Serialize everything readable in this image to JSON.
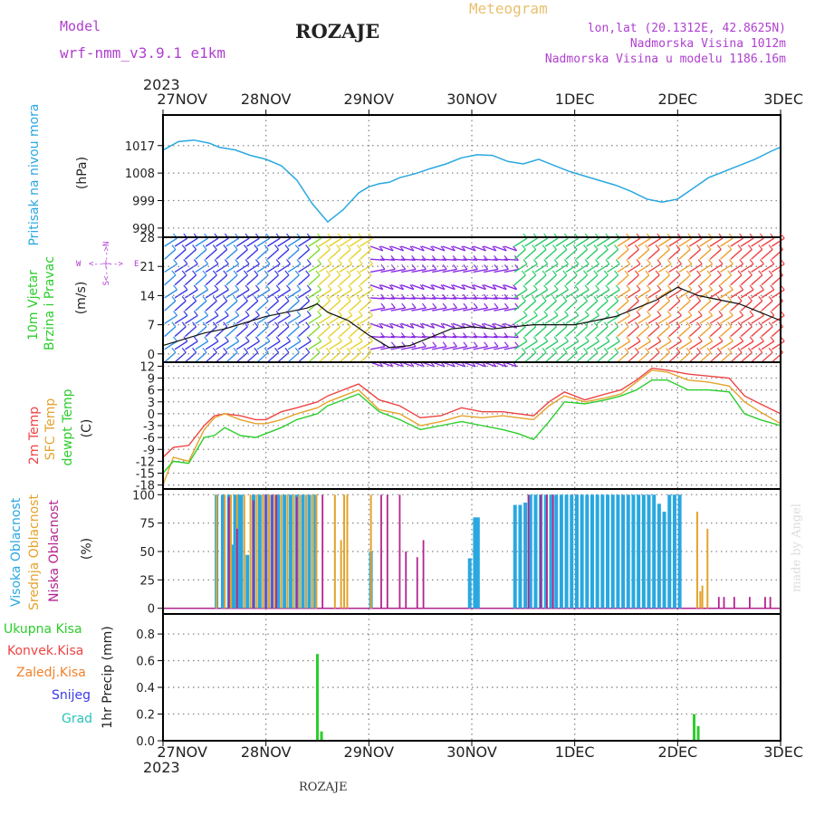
{
  "header": {
    "model_label": "Model",
    "model_name": "wrf-nmm_v3.9.1  e1km",
    "station": "ROZAJE",
    "product": "Meteogram",
    "lonlat": "lon,lat (20.1312E, 42.8625N)",
    "elevation": "Nadmorska Visina 1012m",
    "model_elevation": "Nadmorska Visina u modelu 1186.16m",
    "footer_station": "ROZAJE",
    "credit": "made by Angel"
  },
  "time_axis": {
    "year": "2023",
    "days": [
      "27NOV",
      "28NOV",
      "29NOV",
      "30NOV",
      "1DEC",
      "2DEC",
      "3DEC"
    ]
  },
  "colors": {
    "pressure": "#29a8e0",
    "t2m": "#ee4444",
    "sfc": "#e3a32c",
    "dewpt": "#2ccd2c",
    "high_cloud": "#29a8e0",
    "mid_cloud": "#e3a32c",
    "low_cloud": "#b3238f",
    "precip": "#2ccd2c",
    "conv": "#ee4444",
    "froz": "#f0822c",
    "snow": "#3a3ae8",
    "graupel": "#2cc4b8",
    "wind_axis_label": "#b040d0",
    "header_purple": "#b040d0",
    "header_gold": "#e8c070"
  },
  "panel_labels": {
    "pressure": [
      "Pritisak na nivou mora",
      "(hPa)"
    ],
    "wind": [
      "10m Vjetar",
      "Brzina i Pravac",
      "(m/s)"
    ],
    "wind_compass": [
      "W",
      "<--|-->",
      "E",
      "S<--|-->N"
    ],
    "temp": [
      "2m Temp",
      "SFC Temp",
      "dewpt Temp",
      "(C)"
    ],
    "cloud": [
      "Visoka Oblacnost",
      "Srednja Oblacnost",
      "Niska Oblacnost",
      "(%)"
    ],
    "precip_legend": [
      "Ukupna Kisa",
      "Konvek.Kisa",
      "Zaledj.Kisa",
      "Snijeg",
      "Grad"
    ],
    "precip_unit": "1hr Precip (mm)"
  },
  "chart_data": [
    {
      "type": "line",
      "name": "pressure",
      "yticks": [
        990,
        999,
        1008,
        1017
      ],
      "ylim": [
        987,
        1027
      ],
      "x": [
        0,
        0.15,
        0.3,
        0.45,
        0.55,
        0.7,
        0.85,
        1.0,
        1.15,
        1.3,
        1.45,
        1.6,
        1.75,
        1.9,
        2.0,
        2.1,
        2.2,
        2.3,
        2.45,
        2.6,
        2.75,
        2.9,
        3.05,
        3.2,
        3.35,
        3.5,
        3.65,
        3.8,
        3.95,
        4.1,
        4.25,
        4.4,
        4.55,
        4.7,
        4.85,
        5.0,
        5.15,
        5.3,
        5.45,
        5.6,
        5.75,
        5.9,
        6.0
      ],
      "values": [
        1015.5,
        1018.3,
        1018.8,
        1017.8,
        1016.4,
        1015.6,
        1013.8,
        1012.5,
        1010.4,
        1005.7,
        998.0,
        992.0,
        996.0,
        1001.5,
        1003.5,
        1004.5,
        1005.0,
        1006.5,
        1007.8,
        1009.5,
        1011.0,
        1013.0,
        1014.0,
        1013.8,
        1011.8,
        1011.0,
        1012.5,
        1010.5,
        1008.5,
        1007.0,
        1005.5,
        1004.0,
        1002.0,
        999.5,
        998.5,
        999.5,
        1003.0,
        1006.5,
        1008.5,
        1010.5,
        1012.5,
        1015.0,
        1016.5
      ]
    },
    {
      "type": "line",
      "name": "wind_speed",
      "yticks": [
        0,
        7,
        14,
        21,
        28
      ],
      "ylim": [
        -2,
        28
      ],
      "x": [
        0,
        0.2,
        0.4,
        0.6,
        0.8,
        1.0,
        1.2,
        1.4,
        1.5,
        1.6,
        1.8,
        2.0,
        2.2,
        2.4,
        2.6,
        2.8,
        3.0,
        3.2,
        3.4,
        3.6,
        3.8,
        4.0,
        4.2,
        4.4,
        4.6,
        4.8,
        5.0,
        5.2,
        5.4,
        5.6,
        5.8,
        6.0
      ],
      "values": [
        2.0,
        3.5,
        5.0,
        6.0,
        7.5,
        9.0,
        10.0,
        11.0,
        12.0,
        10.0,
        8.0,
        4.5,
        1.5,
        2.0,
        4.0,
        6.0,
        6.5,
        6.0,
        6.5,
        7.0,
        7.0,
        7.0,
        8.0,
        9.0,
        11.0,
        13.0,
        16.0,
        14.0,
        13.0,
        12.0,
        10.0,
        8.0
      ]
    },
    {
      "type": "line",
      "name": "temperature",
      "yticks": [
        12,
        9,
        6,
        3,
        0,
        -3,
        -6,
        -9,
        -12,
        -15,
        -18
      ],
      "ylim": [
        -19,
        13
      ],
      "x": [
        0,
        0.1,
        0.25,
        0.4,
        0.5,
        0.6,
        0.75,
        0.9,
        1.0,
        1.15,
        1.3,
        1.5,
        1.6,
        1.75,
        1.9,
        2.1,
        2.3,
        2.5,
        2.7,
        2.9,
        3.1,
        3.3,
        3.45,
        3.6,
        3.75,
        3.9,
        4.1,
        4.3,
        4.45,
        4.6,
        4.75,
        4.9,
        5.1,
        5.3,
        5.5,
        5.65,
        5.8,
        6.0
      ],
      "series": [
        {
          "name": "2m Temp",
          "values": [
            -11,
            -8.5,
            -8,
            -3,
            -0.5,
            0,
            -0.5,
            -1.5,
            -1.5,
            0.5,
            1.5,
            3,
            4.5,
            6,
            7.5,
            3.5,
            2,
            -1,
            -0.5,
            1.5,
            0.5,
            0.5,
            0,
            -0.5,
            3,
            5.5,
            3.5,
            5,
            6,
            8.5,
            11.5,
            11,
            10,
            9.5,
            9,
            4.5,
            2.5,
            0
          ]
        },
        {
          "name": "SFC Temp",
          "values": [
            -18,
            -11,
            -12,
            -4,
            -1,
            0,
            -1.5,
            -2.5,
            -2.5,
            -1.5,
            0,
            1.5,
            3,
            4.5,
            6,
            1,
            0,
            -3,
            -2,
            -0.5,
            -1,
            -0.5,
            -1,
            -1.5,
            2,
            4.5,
            3,
            4,
            5,
            8,
            11,
            10.5,
            8.5,
            8,
            7,
            3,
            0.5,
            -2.5
          ]
        },
        {
          "name": "dewpt Temp",
          "values": [
            -15,
            -12,
            -12.5,
            -6,
            -5.5,
            -3.5,
            -5.5,
            -6,
            -5,
            -3.5,
            -1.5,
            0,
            2,
            3.5,
            5,
            0.5,
            -1.5,
            -4,
            -3,
            -2,
            -3,
            -4,
            -5,
            -6.5,
            -2,
            3,
            2.5,
            3.5,
            4.5,
            6,
            8.5,
            8.5,
            6,
            6,
            5.5,
            0,
            -1.5,
            -3
          ]
        }
      ]
    },
    {
      "type": "bar",
      "name": "cloud_cover",
      "yticks": [
        0,
        25,
        50,
        75,
        100
      ],
      "ylim": [
        -5,
        105
      ],
      "series": [
        {
          "name": "Visoka Oblacnost",
          "x": [
            0.52,
            0.58,
            0.64,
            0.67,
            0.7,
            0.73,
            0.76,
            0.82,
            0.88,
            0.94,
            1.0,
            1.06,
            1.12,
            1.18,
            1.24,
            1.3,
            1.36,
            1.42,
            1.48,
            2.02,
            2.98,
            3.03,
            3.06,
            3.42,
            3.47,
            3.52,
            3.57,
            3.62,
            3.67,
            3.72,
            3.77,
            3.82,
            3.87,
            3.92,
            3.97,
            4.02,
            4.07,
            4.12,
            4.17,
            4.22,
            4.27,
            4.32,
            4.37,
            4.42,
            4.47,
            4.52,
            4.57,
            4.62,
            4.67,
            4.72,
            4.77,
            4.82,
            4.87,
            4.92,
            4.97,
            5.02
          ],
          "values": [
            100,
            100,
            100,
            56,
            100,
            100,
            100,
            47,
            100,
            100,
            100,
            100,
            100,
            100,
            100,
            100,
            100,
            100,
            100,
            50,
            44,
            80,
            80,
            91,
            91,
            93,
            100,
            100,
            100,
            100,
            100,
            100,
            100,
            100,
            100,
            100,
            100,
            100,
            100,
            100,
            100,
            100,
            100,
            100,
            100,
            100,
            100,
            100,
            100,
            100,
            100,
            92,
            85,
            100,
            100,
            100
          ]
        },
        {
          "name": "Srednja Oblacnost",
          "x": [
            0.52,
            0.6,
            0.66,
            0.72,
            0.79,
            0.85,
            0.91,
            0.97,
            1.03,
            1.09,
            1.15,
            1.21,
            1.27,
            1.33,
            1.39,
            1.45,
            1.49,
            1.51,
            1.67,
            1.73,
            1.76,
            1.79,
            2.02,
            3.73,
            5.19,
            5.22,
            5.24,
            5.29
          ],
          "values": [
            100,
            100,
            100,
            100,
            100,
            100,
            100,
            100,
            100,
            100,
            100,
            100,
            100,
            100,
            100,
            100,
            100,
            0,
            100,
            60,
            100,
            100,
            100,
            100,
            85,
            15,
            20,
            70
          ]
        },
        {
          "name": "Niska Oblacnost",
          "x": [
            0.64,
            0.72,
            0.88,
            1.0,
            1.06,
            1.1,
            1.3,
            1.55,
            2.12,
            2.18,
            2.3,
            2.36,
            2.47,
            2.53,
            3.55,
            3.67,
            3.73,
            3.79,
            5.4,
            5.45,
            5.55,
            5.7,
            5.85,
            5.9
          ],
          "values": [
            98,
            70,
            95,
            100,
            100,
            100,
            98,
            100,
            100,
            100,
            100,
            50,
            45,
            60,
            100,
            100,
            100,
            100,
            10,
            10,
            10,
            10,
            10,
            10
          ]
        }
      ]
    },
    {
      "type": "bar",
      "name": "precip_1hr",
      "yticks": [
        0.0,
        0.2,
        0.4,
        0.6,
        0.8
      ],
      "ylim": [
        0,
        0.95
      ],
      "series": [
        {
          "name": "Ukupna Kisa",
          "x": [
            1.5,
            1.54,
            5.16,
            5.2
          ],
          "values": [
            0.65,
            0.07,
            0.2,
            0.11
          ]
        }
      ]
    }
  ]
}
